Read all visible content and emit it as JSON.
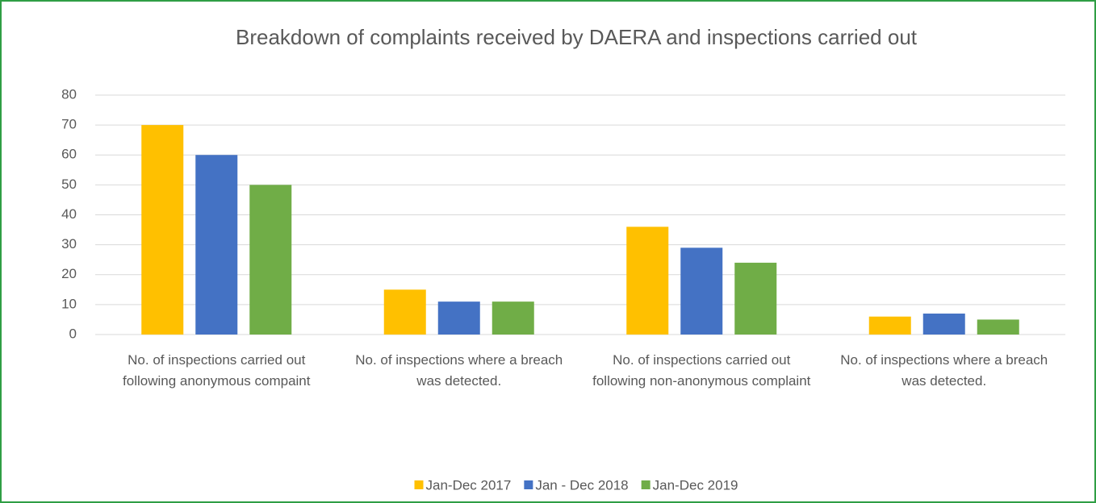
{
  "chart_data": {
    "type": "bar",
    "title": "Breakdown of complaints received by DAERA and inspections carried out",
    "categories": [
      "No. of inspections carried out following anonymous compaint",
      "No. of inspections where a breach was detected.",
      "No. of inspections carried out following non-anonymous complaint",
      "No. of inspections where a breach was detected."
    ],
    "series": [
      {
        "name": "Jan-Dec 2017",
        "color": "#ffc000",
        "values": [
          70,
          15,
          36,
          6
        ]
      },
      {
        "name": "Jan - Dec 2018",
        "color": "#4472c4",
        "values": [
          60,
          11,
          29,
          7
        ]
      },
      {
        "name": "Jan-Dec 2019",
        "color": "#70ad47",
        "values": [
          50,
          11,
          24,
          5
        ]
      }
    ],
    "ylim": [
      0,
      80
    ],
    "yticks": [
      0,
      10,
      20,
      30,
      40,
      50,
      60,
      70,
      80
    ],
    "grid": true,
    "legend": "bottom"
  }
}
